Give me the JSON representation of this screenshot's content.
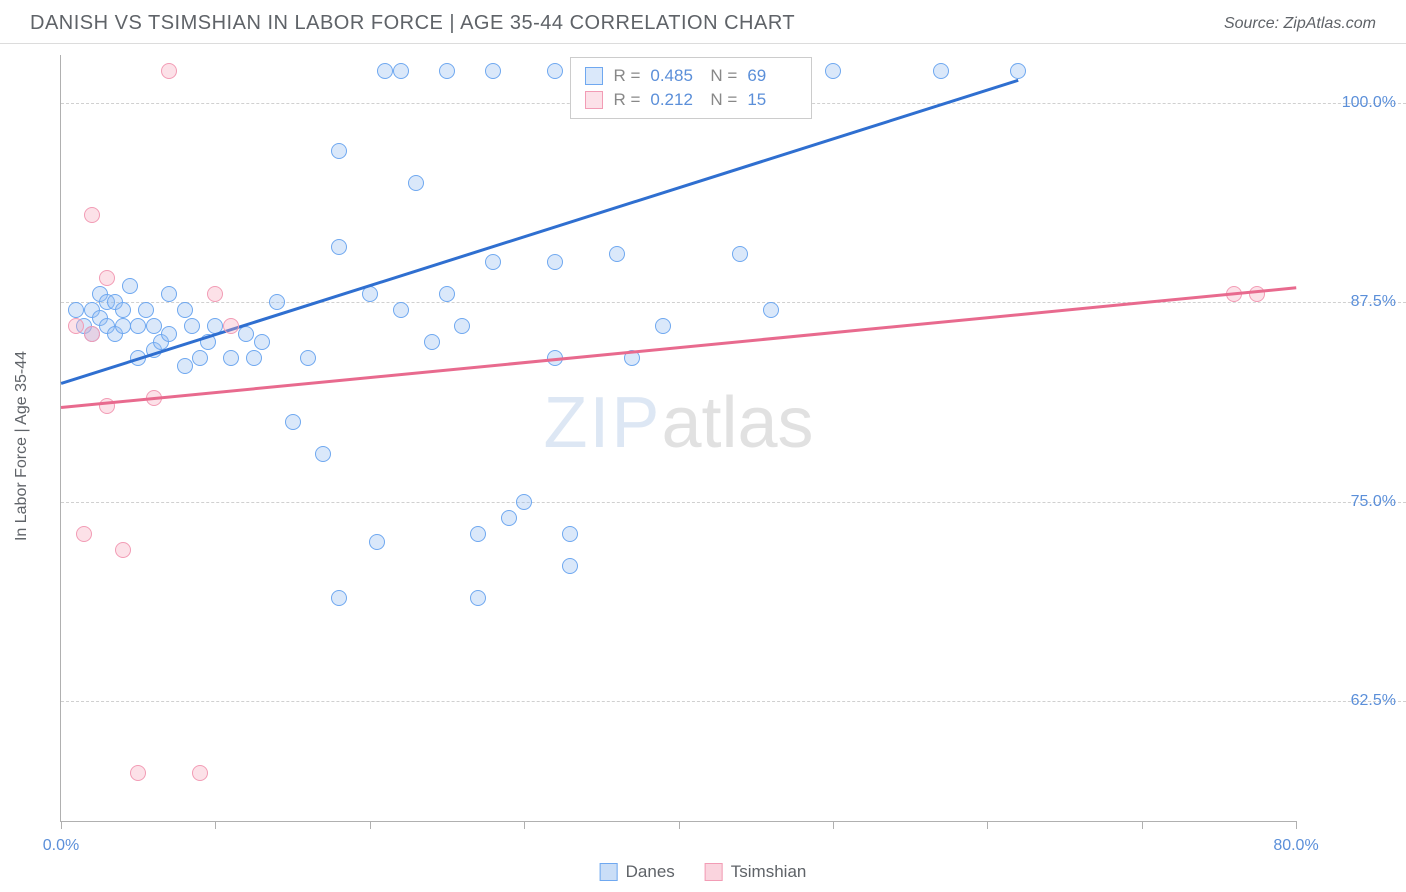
{
  "title": "DANISH VS TSIMSHIAN IN LABOR FORCE | AGE 35-44 CORRELATION CHART",
  "source": "Source: ZipAtlas.com",
  "ylabel": "In Labor Force | Age 35-44",
  "watermark_part1": "ZIP",
  "watermark_part2": "atlas",
  "chart": {
    "type": "scatter",
    "xlim": [
      0,
      80
    ],
    "ylim": [
      55,
      103
    ],
    "xtick_positions": [
      0,
      10,
      20,
      30,
      40,
      50,
      60,
      70,
      80
    ],
    "xtick_labels_shown": {
      "0": "0.0%",
      "80": "80.0%"
    },
    "ytick_positions": [
      62.5,
      75.0,
      87.5,
      100.0
    ],
    "ytick_labels": [
      "62.5%",
      "75.0%",
      "87.5%",
      "100.0%"
    ],
    "background_color": "#ffffff",
    "grid_color": "#d0d0d0",
    "axis_color": "#b0b0b0",
    "point_radius": 8,
    "point_fill_opacity": 0.35,
    "series": [
      {
        "name": "Danes",
        "color_stroke": "#6fa8f0",
        "color_fill": "rgba(150,190,240,0.35)",
        "line_color": "#2f6fd0",
        "R": "0.485",
        "N": "69",
        "trend": {
          "x1": 0,
          "y1": 82.5,
          "x2": 62,
          "y2": 101.5
        },
        "points": [
          [
            1,
            87
          ],
          [
            1.5,
            86
          ],
          [
            2,
            85.5
          ],
          [
            2,
            87
          ],
          [
            2.5,
            86.5
          ],
          [
            2.5,
            88
          ],
          [
            3,
            87.5
          ],
          [
            3,
            86
          ],
          [
            3.5,
            87.5
          ],
          [
            3.5,
            85.5
          ],
          [
            4,
            86
          ],
          [
            4,
            87
          ],
          [
            4.5,
            88.5
          ],
          [
            5,
            86
          ],
          [
            5,
            84
          ],
          [
            5.5,
            87
          ],
          [
            6,
            86
          ],
          [
            6,
            84.5
          ],
          [
            6.5,
            85
          ],
          [
            7,
            85.5
          ],
          [
            7,
            88
          ],
          [
            8,
            87
          ],
          [
            8,
            83.5
          ],
          [
            8.5,
            86
          ],
          [
            9,
            84
          ],
          [
            9.5,
            85
          ],
          [
            10,
            86
          ],
          [
            11,
            84
          ],
          [
            12,
            85.5
          ],
          [
            12.5,
            84
          ],
          [
            13,
            85
          ],
          [
            14,
            87.5
          ],
          [
            15,
            80
          ],
          [
            16,
            84
          ],
          [
            17,
            78
          ],
          [
            18,
            97
          ],
          [
            18,
            91
          ],
          [
            20,
            88
          ],
          [
            20.5,
            72.5
          ],
          [
            21,
            102
          ],
          [
            22,
            87
          ],
          [
            22,
            102
          ],
          [
            23,
            95
          ],
          [
            24,
            85
          ],
          [
            25,
            102
          ],
          [
            25,
            88
          ],
          [
            26,
            86
          ],
          [
            27,
            73
          ],
          [
            28,
            102
          ],
          [
            28,
            90
          ],
          [
            29,
            74
          ],
          [
            30,
            75
          ],
          [
            32,
            102
          ],
          [
            32,
            90
          ],
          [
            32,
            84
          ],
          [
            33,
            71
          ],
          [
            33,
            73
          ],
          [
            33.5,
            102
          ],
          [
            36,
            90.5
          ],
          [
            37,
            84
          ],
          [
            39,
            86
          ],
          [
            44,
            90.5
          ],
          [
            46,
            87
          ],
          [
            48,
            102
          ],
          [
            50,
            102
          ],
          [
            57,
            102
          ],
          [
            62,
            102
          ],
          [
            27,
            69
          ],
          [
            18,
            69
          ]
        ]
      },
      {
        "name": "Tsimshian",
        "color_stroke": "#f29cb5",
        "color_fill": "rgba(245,170,190,0.35)",
        "line_color": "#e86a8e",
        "R": "0.212",
        "N": "15",
        "trend": {
          "x1": 0,
          "y1": 81,
          "x2": 80,
          "y2": 88.5
        },
        "points": [
          [
            1,
            86
          ],
          [
            1.5,
            73
          ],
          [
            2,
            93
          ],
          [
            2,
            85.5
          ],
          [
            3,
            81
          ],
          [
            3,
            89
          ],
          [
            4,
            72
          ],
          [
            5,
            58
          ],
          [
            6,
            81.5
          ],
          [
            7,
            102
          ],
          [
            9,
            58
          ],
          [
            10,
            88
          ],
          [
            11,
            86
          ],
          [
            76,
            88
          ],
          [
            77.5,
            88
          ]
        ]
      }
    ]
  },
  "legend": [
    {
      "label": "Danes",
      "stroke": "#6fa8f0",
      "fill": "rgba(150,190,240,0.5)"
    },
    {
      "label": "Tsimshian",
      "stroke": "#f29cb5",
      "fill": "rgba(245,170,190,0.5)"
    }
  ]
}
